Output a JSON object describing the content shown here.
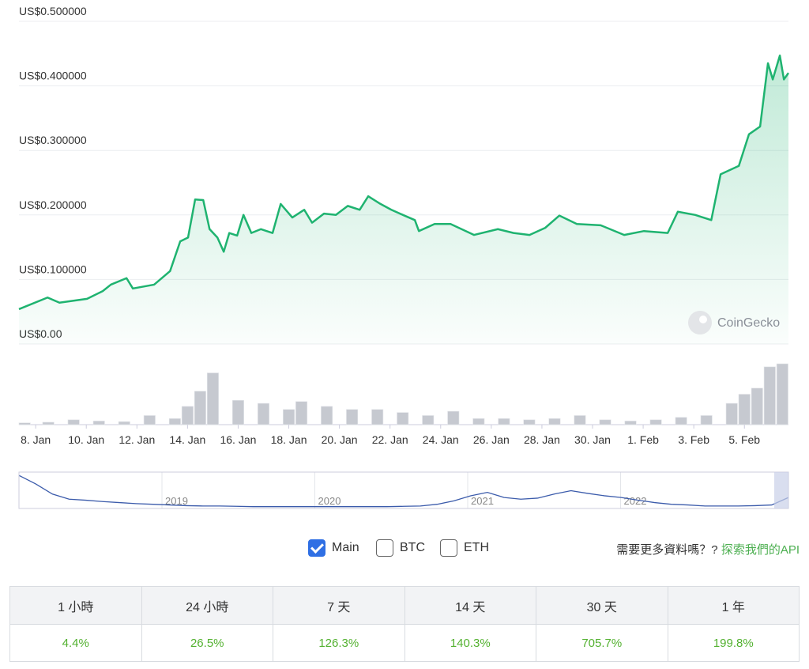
{
  "chart_data": {
    "type": "line",
    "series": [
      {
        "name": "Main",
        "color": "#1fb370",
        "x": [
          7.34,
          8.47,
          8.94,
          10.03,
          10.65,
          10.97,
          11.59,
          11.84,
          12.68,
          13.31,
          13.71,
          14.02,
          14.3,
          14.62,
          14.87,
          15.18,
          15.43,
          15.65,
          15.96,
          16.21,
          16.52,
          16.9,
          17.36,
          17.68,
          18.14,
          18.61,
          18.92,
          19.39,
          19.86,
          20.33,
          20.8,
          21.14,
          21.58,
          22.05,
          22.51,
          22.98,
          23.14,
          23.76,
          24.39,
          25.32,
          26.26,
          26.88,
          27.51,
          28.13,
          28.69,
          29.38,
          30.32,
          31.25,
          32.03,
          32.97,
          33.37,
          34.06,
          34.69,
          35.06,
          35.78,
          36.18,
          36.62,
          36.93,
          37.12,
          37.4,
          37.56,
          37.74
        ],
        "values": [
          0.054,
          0.072,
          0.064,
          0.07,
          0.082,
          0.092,
          0.102,
          0.086,
          0.092,
          0.113,
          0.159,
          0.165,
          0.224,
          0.223,
          0.178,
          0.165,
          0.143,
          0.172,
          0.168,
          0.2,
          0.172,
          0.178,
          0.172,
          0.217,
          0.196,
          0.208,
          0.188,
          0.202,
          0.2,
          0.214,
          0.208,
          0.229,
          0.218,
          0.208,
          0.2,
          0.192,
          0.175,
          0.186,
          0.186,
          0.169,
          0.178,
          0.172,
          0.169,
          0.18,
          0.199,
          0.186,
          0.184,
          0.169,
          0.175,
          0.172,
          0.205,
          0.2,
          0.192,
          0.263,
          0.276,
          0.325,
          0.337,
          0.435,
          0.41,
          0.447,
          0.41,
          0.42
        ]
      },
      {
        "name": "Volume",
        "color": "#c6c9d0",
        "axis": "y2",
        "x": [
          7.5,
          8.5,
          9.5,
          10.5,
          11.5,
          12.5,
          13.5,
          14,
          14.5,
          15,
          16,
          17,
          18,
          18.5,
          19.5,
          20.5,
          21.5,
          22.5,
          23.5,
          24.5,
          25.5,
          26.5,
          27.5,
          28.5,
          29.5,
          30.5,
          31.5,
          32.5,
          33.5,
          34.5,
          35.5,
          36,
          36.5,
          37,
          37.5
        ],
        "values": [
          3,
          4,
          8,
          6,
          5,
          15,
          10,
          30,
          55,
          85,
          40,
          35,
          25,
          38,
          30,
          25,
          25,
          20,
          15,
          22,
          10,
          10,
          8,
          10,
          15,
          8,
          6,
          8,
          12,
          15,
          35,
          50,
          60,
          95,
          100
        ]
      }
    ],
    "xlim": [
      7.34,
      37.74
    ],
    "xticks": [
      {
        "value": 8,
        "label": "8. Jan"
      },
      {
        "value": 10,
        "label": "10. Jan"
      },
      {
        "value": 12,
        "label": "12. Jan"
      },
      {
        "value": 14,
        "label": "14. Jan"
      },
      {
        "value": 16,
        "label": "16. Jan"
      },
      {
        "value": 18,
        "label": "18. Jan"
      },
      {
        "value": 20,
        "label": "20. Jan"
      },
      {
        "value": 22,
        "label": "22. Jan"
      },
      {
        "value": 24,
        "label": "24. Jan"
      },
      {
        "value": 26,
        "label": "26. Jan"
      },
      {
        "value": 28,
        "label": "28. Jan"
      },
      {
        "value": 30,
        "label": "30. Jan"
      },
      {
        "value": 32,
        "label": "1. Feb"
      },
      {
        "value": 34,
        "label": "3. Feb"
      },
      {
        "value": 36,
        "label": "5. Feb"
      }
    ],
    "ylim": [
      0,
      0.5
    ],
    "yticks": [
      {
        "value": 0,
        "label": "US$0.00"
      },
      {
        "value": 0.1,
        "label": "US$0.100000"
      },
      {
        "value": 0.2,
        "label": "US$0.200000"
      },
      {
        "value": 0.3,
        "label": "US$0.300000"
      },
      {
        "value": 0.4,
        "label": "US$0.400000"
      },
      {
        "value": 0.5,
        "label": "US$0.500000"
      }
    ],
    "y2lim": [
      0,
      100
    ],
    "grid": true,
    "watermark": "CoinGecko",
    "navigator": {
      "labels": [
        "2019",
        "2020",
        "2021",
        "2022"
      ],
      "color": "#3b5bab",
      "values": [
        95,
        70,
        40,
        25,
        22,
        18,
        15,
        12,
        10,
        8,
        6,
        5,
        5,
        4,
        3,
        3,
        3,
        3,
        3,
        3,
        3,
        3,
        3,
        4,
        5,
        10,
        20,
        35,
        45,
        30,
        25,
        28,
        40,
        50,
        42,
        35,
        30,
        22,
        15,
        10,
        8,
        5,
        5,
        5,
        6,
        8,
        30
      ]
    }
  },
  "controls": {
    "options": [
      "Main",
      "BTC",
      "ETH"
    ],
    "checked": [
      true,
      false,
      false
    ],
    "prompt": "需要更多資料嗎？?",
    "link": "探索我們的API"
  },
  "table": {
    "headers": [
      "1 小時",
      "24 小時",
      "7 天",
      "14 天",
      "30 天",
      "1 年"
    ],
    "values": [
      "4.4%",
      "26.5%",
      "126.3%",
      "140.3%",
      "705.7%",
      "199.8%"
    ]
  }
}
